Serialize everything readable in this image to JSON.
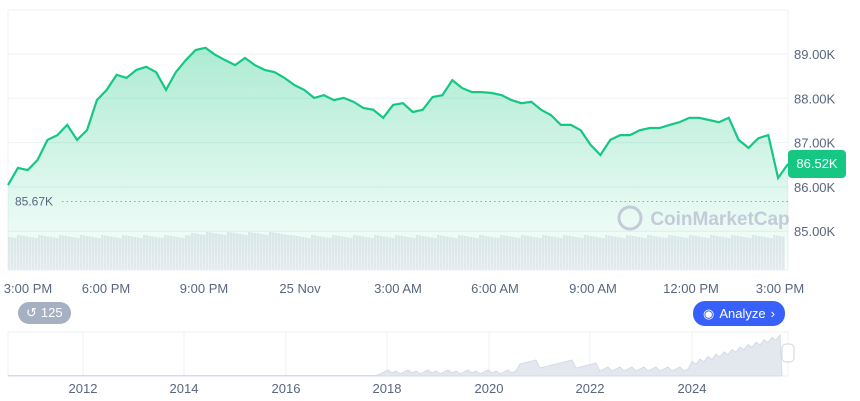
{
  "chart_data": {
    "type": "area",
    "x_ticks": [
      "3:00 PM",
      "6:00 PM",
      "9:00 PM",
      "25 Nov",
      "3:00 AM",
      "6:00 AM",
      "9:00 AM",
      "12:00 PM",
      "3:00 PM"
    ],
    "y_ticks": [
      "89.00K",
      "88.00K",
      "87.00K",
      "86.00K",
      "85.00K"
    ],
    "y_tick_values": [
      89,
      88,
      87,
      86,
      85
    ],
    "ylim": [
      84.2,
      89.8
    ],
    "y_unit": "K",
    "values": [
      86.04,
      86.43,
      86.38,
      86.61,
      87.06,
      87.17,
      87.4,
      87.06,
      87.28,
      87.96,
      88.19,
      88.53,
      88.46,
      88.64,
      88.71,
      88.59,
      88.19,
      88.59,
      88.86,
      89.09,
      89.14,
      88.98,
      88.86,
      88.75,
      88.91,
      88.75,
      88.64,
      88.59,
      88.46,
      88.3,
      88.19,
      88.01,
      88.07,
      87.96,
      88.01,
      87.92,
      87.78,
      87.74,
      87.56,
      87.85,
      87.89,
      87.69,
      87.74,
      88.03,
      88.07,
      88.41,
      88.23,
      88.14,
      88.14,
      88.12,
      88.07,
      87.96,
      87.89,
      87.92,
      87.74,
      87.62,
      87.4,
      87.4,
      87.28,
      86.95,
      86.72,
      87.06,
      87.17,
      87.17,
      87.28,
      87.33,
      87.33,
      87.4,
      87.46,
      87.56,
      87.56,
      87.51,
      87.46,
      87.56,
      87.06,
      86.88,
      87.1,
      87.17,
      86.2,
      86.52
    ],
    "current_price": "86.52K",
    "reference_line": {
      "value": 85.67,
      "label": "85.67K"
    },
    "grid": true,
    "overview_x_ticks": [
      "2012",
      "2014",
      "2016",
      "2018",
      "2020",
      "2022",
      "2024"
    ]
  },
  "colors": {
    "line": "#16c784",
    "volume": "#e8eaef",
    "analyze": "#3861fb",
    "history_badge": "#a6b0c3"
  },
  "watermark": "CoinMarketCap",
  "history_badge": {
    "icon": "history-icon",
    "count": "125"
  },
  "analyze_button": {
    "label": "Analyze",
    "icon": "cmc-ai-icon"
  }
}
